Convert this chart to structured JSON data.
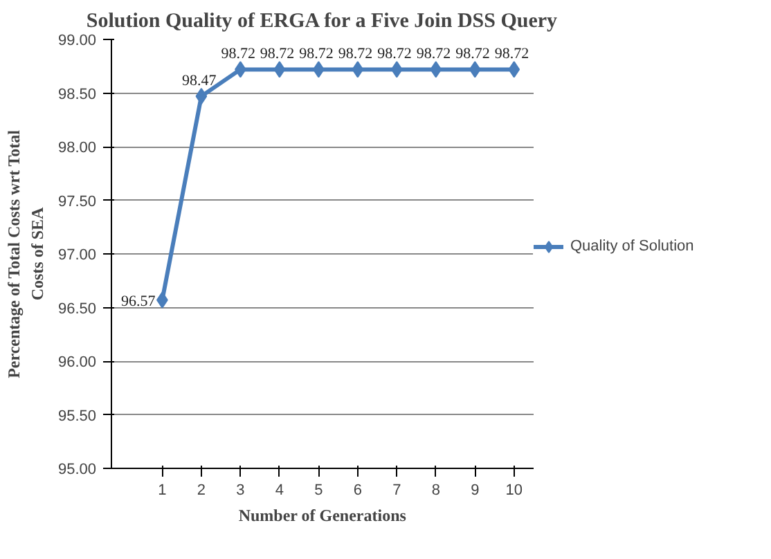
{
  "chart_data": {
    "type": "line",
    "title": "Solution Quality of ERGA for a Five Join DSS Query",
    "xlabel": "Number of Generations",
    "ylabel": "Percentage of Total Costs wrt Total\nCosts of SEA",
    "categories": [
      "1",
      "2",
      "3",
      "4",
      "5",
      "6",
      "7",
      "8",
      "9",
      "10"
    ],
    "series": [
      {
        "name": "Quality of Solution",
        "color": "#4a7ebb",
        "values": [
          96.57,
          98.47,
          98.72,
          98.72,
          98.72,
          98.72,
          98.72,
          98.72,
          98.72,
          98.72
        ]
      }
    ],
    "ylim": [
      95,
      99
    ],
    "yticks": [
      {
        "value": 95,
        "label": "95.00"
      },
      {
        "value": 95.5,
        "label": "95.50"
      },
      {
        "value": 96,
        "label": "96.00"
      },
      {
        "value": 96.5,
        "label": "96.50"
      },
      {
        "value": 97,
        "label": "97.00"
      },
      {
        "value": 97.5,
        "label": "97.50"
      },
      {
        "value": 98,
        "label": "98.00"
      },
      {
        "value": 98.5,
        "label": "98.50"
      },
      {
        "value": 99,
        "label": "99.00"
      }
    ],
    "grid": "y",
    "legend": "right",
    "marker": "diamond",
    "line_style": "solid",
    "data_labels": true
  }
}
